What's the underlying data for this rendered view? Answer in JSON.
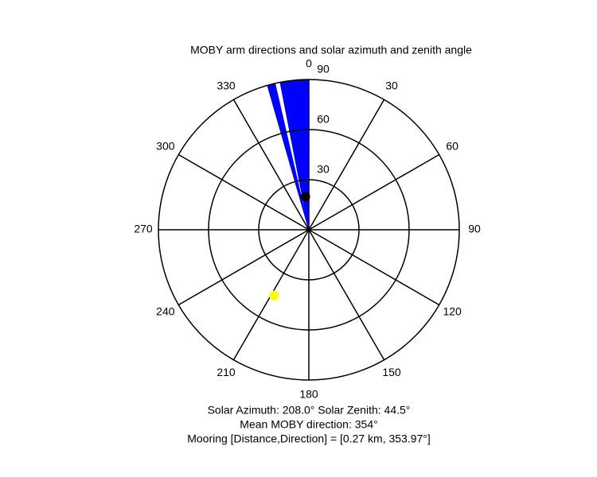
{
  "chart_data": {
    "type": "polar",
    "title": "MOBY arm directions and solar azimuth and zenith angle",
    "rlim": [
      0,
      90
    ],
    "rticks": [
      30,
      60,
      90
    ],
    "thetaticks": [
      0,
      30,
      60,
      90,
      120,
      150,
      180,
      210,
      240,
      270,
      300,
      330
    ],
    "theta_zero": "top",
    "theta_direction": "clockwise",
    "wedges": {
      "color": "#0000ff",
      "r": 90,
      "theta": [
        [
          344,
          347
        ],
        [
          349,
          360
        ]
      ]
    },
    "points": [
      {
        "color": "#000000",
        "theta": 354,
        "r": 20
      },
      {
        "color": "#ffff00",
        "theta": 208,
        "r": 44.5
      }
    ],
    "annotations": [
      "Solar Azimuth: 208.0° Solar Zenith: 44.5°",
      "Mean MOBY direction: 354°",
      "Mooring [Distance,Direction] = [0.27 km, 353.97°]"
    ]
  }
}
